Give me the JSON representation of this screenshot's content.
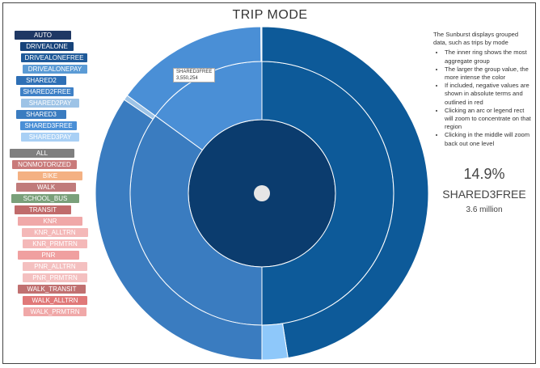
{
  "title": "TRIP MODE",
  "legend_group_1": [
    {
      "label": "AUTO",
      "color": "#1f3864"
    },
    {
      "label": "DRIVEALONE",
      "color": "#17437a"
    },
    {
      "label": "DRIVEALONEFREE",
      "color": "#1f5a99"
    },
    {
      "label": "DRIVEALONEPAY",
      "color": "#5b9bd5"
    },
    {
      "label": "SHARED2",
      "color": "#2e6fb5"
    },
    {
      "label": "SHARED2FREE",
      "color": "#3e80c6"
    },
    {
      "label": "SHARED2PAY",
      "color": "#9dc3e6"
    },
    {
      "label": "SHARED3",
      "color": "#3a7cc0"
    },
    {
      "label": "SHARED3FREE",
      "color": "#4a8fd6"
    },
    {
      "label": "SHARED3PAY",
      "color": "#a9d0f5"
    }
  ],
  "legend_group_2": [
    {
      "label": "ALL",
      "color": "#7f7f7f"
    },
    {
      "label": "NONMOTORIZED",
      "color": "#c97a7a"
    },
    {
      "label": "BIKE",
      "color": "#f4b183"
    },
    {
      "label": "WALK",
      "color": "#c07b7b"
    },
    {
      "label": "SCHOOL_BUS",
      "color": "#7aa07a"
    },
    {
      "label": "TRANSIT",
      "color": "#c06b6b"
    },
    {
      "label": "KNR",
      "color": "#f0a8a8"
    },
    {
      "label": "KNR_ALLTRN",
      "color": "#f4b8b8"
    },
    {
      "label": "KNR_PRMTRN",
      "color": "#f4b8b8"
    },
    {
      "label": "PNR",
      "color": "#f0a0a0"
    },
    {
      "label": "PNR_ALLTRN",
      "color": "#f4c0c0"
    },
    {
      "label": "PNR_PRMTRN",
      "color": "#f4c0c0"
    },
    {
      "label": "WALK_TRANSIT",
      "color": "#c07070"
    },
    {
      "label": "WALK_ALLTRN",
      "color": "#e07878"
    },
    {
      "label": "WALK_PRMTRN",
      "color": "#f0a8a8"
    }
  ],
  "info": {
    "intro": "The Sunburst displays grouped data, such as trips by mode",
    "bullets": [
      "The inner ring shows the most aggregate group",
      "The larger the group value, the more intense the color",
      "If included, negative values are shown in absolute terms and outlined in red",
      "Clicking an arc or legend rect will zoom to concentrate on that region",
      "Clicking in the middle will zoom back out one level"
    ]
  },
  "selected": {
    "percent": "14.9%",
    "label": "SHARED3FREE",
    "value": "3.6 million"
  },
  "tooltip": {
    "label": "SHARED3FREE",
    "value": "3,550,254"
  },
  "chart_data": {
    "type": "sunburst",
    "title": "TRIP MODE",
    "rings": [
      {
        "level": "inner",
        "arcs": [
          {
            "name": "AUTO",
            "share": 1.0,
            "color": "#0b3c6e"
          }
        ]
      },
      {
        "level": "middle",
        "arcs": [
          {
            "name": "DRIVEALONE",
            "share": 0.5,
            "color": "#0d5a99"
          },
          {
            "name": "SHARED2",
            "share": 0.35,
            "color": "#3a7cc0"
          },
          {
            "name": "SHARED3",
            "share": 0.15,
            "color": "#4a8fd6"
          }
        ]
      },
      {
        "level": "outer",
        "arcs": [
          {
            "name": "DRIVEALONEFREE",
            "share": 0.475,
            "color": "#0d5a99"
          },
          {
            "name": "DRIVEALONEPAY",
            "share": 0.025,
            "color": "#8ec8fa"
          },
          {
            "name": "SHARED2FREE",
            "share": 0.345,
            "color": "#3a7cc0"
          },
          {
            "name": "SHARED2PAY",
            "share": 0.005,
            "color": "#9dc3e6"
          },
          {
            "name": "SHARED3FREE",
            "share": 0.149,
            "color": "#4a8fd6"
          },
          {
            "name": "SHARED3PAY",
            "share": 0.001,
            "color": "#b9ddfb"
          }
        ]
      }
    ]
  }
}
